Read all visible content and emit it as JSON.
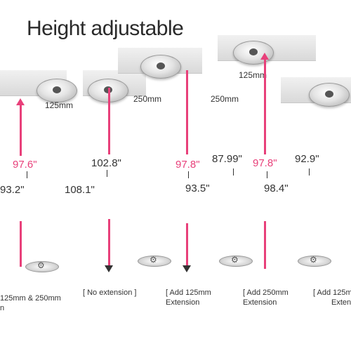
{
  "title": "Height adjustable",
  "extension_labels": {
    "ext_125": "125mm",
    "ext_250_a": "250mm",
    "ext_250_b": "250mm",
    "ext_125_top": "125mm"
  },
  "measurements": {
    "col1": {
      "top": "97.6\"",
      "bottom": "93.2\""
    },
    "col2": {
      "top": "102.8\"",
      "bottom": "108.1\""
    },
    "col3": {
      "top": "97.8\"",
      "bottom": "93.5\""
    },
    "col4": {
      "top": "87.99\"",
      "bottom": ""
    },
    "col5": {
      "top": "97.8\"",
      "bottom": "98.4\""
    },
    "col6": {
      "top": "92.9\"",
      "bottom": ""
    }
  },
  "captions": {
    "c1_line1": "125mm & 250mm",
    "c1_line2": "n",
    "c2_line1": "[ No extension ]",
    "c3_line1": "[ Add 125mm",
    "c3_line2": "Extension",
    "c4_line1": "[ Add 250mm",
    "c4_line2": "Extension",
    "c5_line1": "[ Add 125m",
    "c5_line2": "Exten"
  },
  "colors": {
    "accent": "#e8407a",
    "text": "#222222"
  }
}
